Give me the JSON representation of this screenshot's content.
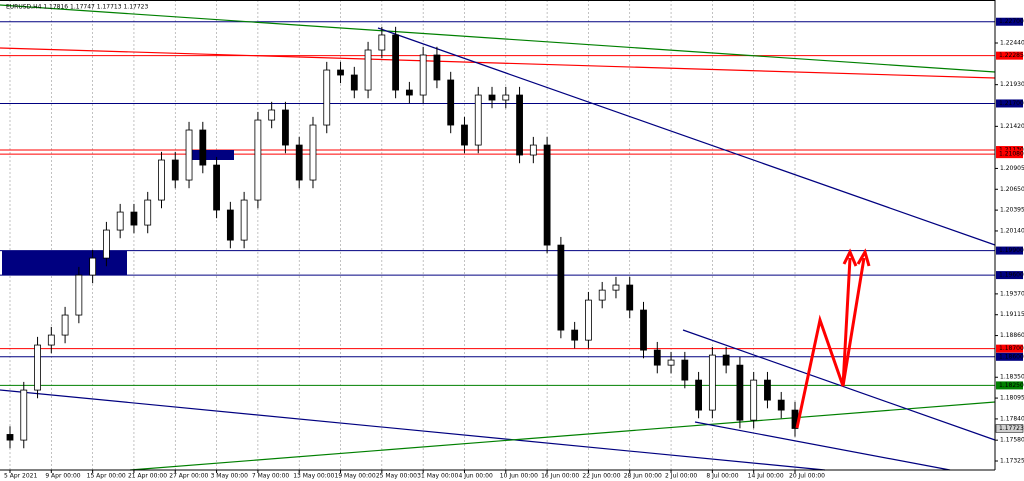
{
  "chart_data": {
    "type": "candlestick",
    "title": "EURUSD,H4  1.17816 1.17747 1.17713 1.17723",
    "categories": [
      "5 Apr 2021",
      null,
      null,
      "9 Apr 00:00",
      null,
      null,
      "15 Apr 00:00",
      null,
      null,
      "21 Apr 00:00",
      null,
      null,
      "27 Apr 00:00",
      null,
      null,
      "3 May 00:00",
      null,
      null,
      "7 May 00:00",
      null,
      null,
      "13 May 00:00",
      null,
      null,
      "19 May 00:00",
      null,
      null,
      "25 May 00:00",
      null,
      null,
      "31 May 00:00",
      null,
      null,
      "4 Jun 00:00",
      null,
      null,
      "10 Jun 00:00",
      null,
      null,
      "16 Jun 00:00",
      null,
      null,
      "22 Jun 00:00",
      null,
      null,
      "28 Jun 00:00",
      null,
      null,
      "2 Jul 00:00",
      null,
      null,
      "8 Jul 00:00",
      null,
      null,
      "14 Jul 00:00",
      null,
      null,
      "20 Jul 00:00"
    ],
    "open": [
      1.1765,
      1.17581,
      1.18193,
      1.18744,
      1.18866,
      1.19111,
      1.196,
      1.19808,
      1.20151,
      1.20371,
      1.20212,
      1.20518,
      1.21008,
      1.20763,
      1.21375,
      1.20946,
      1.20396,
      1.20028,
      1.20518,
      1.21497,
      1.2162,
      1.21191,
      1.20763,
      1.21436,
      1.22109,
      1.22048,
      1.21864,
      1.22354,
      1.22538,
      1.21864,
      1.21803,
      1.22293,
      1.21987,
      1.21436,
      1.21191,
      1.21803,
      1.21742,
      1.21803,
      1.21069,
      1.21191,
      1.19967,
      1.18927,
      1.18804,
      1.19294,
      1.19416,
      1.19478,
      1.19172,
      1.18682,
      1.18498,
      1.1856,
      1.18315,
      1.17948,
      1.18621,
      1.18498,
      1.17825,
      1.18315,
      1.1807,
      1.17948
    ],
    "high": [
      1.1775,
      1.18293,
      1.18844,
      1.18966,
      1.19211,
      1.197,
      1.19908,
      1.20251,
      1.20471,
      1.20471,
      1.20618,
      1.21108,
      1.21108,
      1.21475,
      1.21475,
      1.21046,
      1.20496,
      1.20618,
      1.21597,
      1.2172,
      1.2172,
      1.21291,
      1.21536,
      1.22209,
      1.22209,
      1.22148,
      1.22454,
      1.22638,
      1.22638,
      1.21964,
      1.22393,
      1.22393,
      1.22087,
      1.21536,
      1.21903,
      1.21903,
      1.21903,
      1.21903,
      1.21291,
      1.21291,
      1.20067,
      1.19027,
      1.19394,
      1.19516,
      1.19578,
      1.19578,
      1.19272,
      1.18782,
      1.1866,
      1.1866,
      1.18415,
      1.18721,
      1.18721,
      1.18598,
      1.18415,
      1.18415,
      1.1817,
      1.18048
    ],
    "low": [
      1.17481,
      1.17481,
      1.18093,
      1.18644,
      1.18766,
      1.19011,
      1.195,
      1.19708,
      1.20051,
      1.20112,
      1.20112,
      1.20418,
      1.20663,
      1.20663,
      1.20846,
      1.20296,
      1.19928,
      1.19928,
      1.20418,
      1.21397,
      1.21091,
      1.20663,
      1.20663,
      1.21336,
      1.21948,
      1.21764,
      1.21764,
      1.22254,
      1.21764,
      1.21703,
      1.21703,
      1.21887,
      1.21336,
      1.21091,
      1.21091,
      1.21642,
      1.21642,
      1.20969,
      1.20969,
      1.19867,
      1.18827,
      1.18704,
      1.18704,
      1.19194,
      1.19316,
      1.19072,
      1.18582,
      1.18398,
      1.18398,
      1.18215,
      1.17848,
      1.17848,
      1.18398,
      1.17725,
      1.17725,
      1.1797,
      1.17848,
      1.17623
    ],
    "close": [
      1.17581,
      1.18193,
      1.18744,
      1.18866,
      1.19111,
      1.196,
      1.19808,
      1.20151,
      1.20371,
      1.20212,
      1.20518,
      1.21008,
      1.20763,
      1.21375,
      1.20946,
      1.20396,
      1.20028,
      1.20518,
      1.21497,
      1.2162,
      1.21191,
      1.20763,
      1.21436,
      1.22109,
      1.22048,
      1.21864,
      1.22354,
      1.22538,
      1.21864,
      1.21803,
      1.22293,
      1.21987,
      1.21436,
      1.21191,
      1.21803,
      1.21742,
      1.21803,
      1.21069,
      1.21191,
      1.19967,
      1.18927,
      1.18804,
      1.19294,
      1.19416,
      1.19478,
      1.19172,
      1.18682,
      1.18498,
      1.1856,
      1.18315,
      1.17948,
      1.18621,
      1.18498,
      1.17825,
      1.18315,
      1.1807,
      1.17948,
      1.17723
    ],
    "up_color": "#ffffff",
    "down_color": "#000000",
    "ylim": [
      1.17215,
      1.22966
    ],
    "yticks": [
      {
        "value": 1.2244,
        "label": "1.22440"
      },
      {
        "value": 1.2193,
        "label": "1.21930"
      },
      {
        "value": 1.2142,
        "label": "1.21420"
      },
      {
        "value": 1.20905,
        "label": "1.20905"
      },
      {
        "value": 1.2065,
        "label": "1.20650"
      },
      {
        "value": 1.20395,
        "label": "1.20395"
      },
      {
        "value": 1.2014,
        "label": "1.20140"
      },
      {
        "value": 1.1937,
        "label": "1.19370"
      },
      {
        "value": 1.19115,
        "label": "1.19115"
      },
      {
        "value": 1.1886,
        "label": "1.18860"
      },
      {
        "value": 1.1835,
        "label": "1.18350"
      },
      {
        "value": 1.18095,
        "label": "1.18095"
      },
      {
        "value": 1.1784,
        "label": "1.17840"
      },
      {
        "value": 1.1758,
        "label": "1.17580"
      },
      {
        "value": 1.17325,
        "label": "1.17325"
      }
    ],
    "levels": [
      {
        "value": 1.227,
        "label": "1.22700",
        "color": "#000080"
      },
      {
        "value": 1.22285,
        "label": "1.22285",
        "color": "#ff0000"
      },
      {
        "value": 1.217,
        "label": "1.21700",
        "color": "#000080"
      },
      {
        "value": 1.2113,
        "label": "1.21130",
        "color": "#ff0000"
      },
      {
        "value": 1.2108,
        "label": "1.21080",
        "color": "#ff0000"
      },
      {
        "value": 1.199,
        "label": "1.19900",
        "color": "#000080"
      },
      {
        "value": 1.196,
        "label": "1.19600",
        "color": "#000080"
      },
      {
        "value": 1.187,
        "label": "1.18700",
        "color": "#ff0000"
      },
      {
        "value": 1.186,
        "label": "1.18600",
        "color": "#000080"
      },
      {
        "value": 1.1825,
        "label": "1.18250",
        "color": "#008000"
      }
    ],
    "current": {
      "value": 1.17723,
      "label": "1.17723"
    },
    "grid": true
  }
}
